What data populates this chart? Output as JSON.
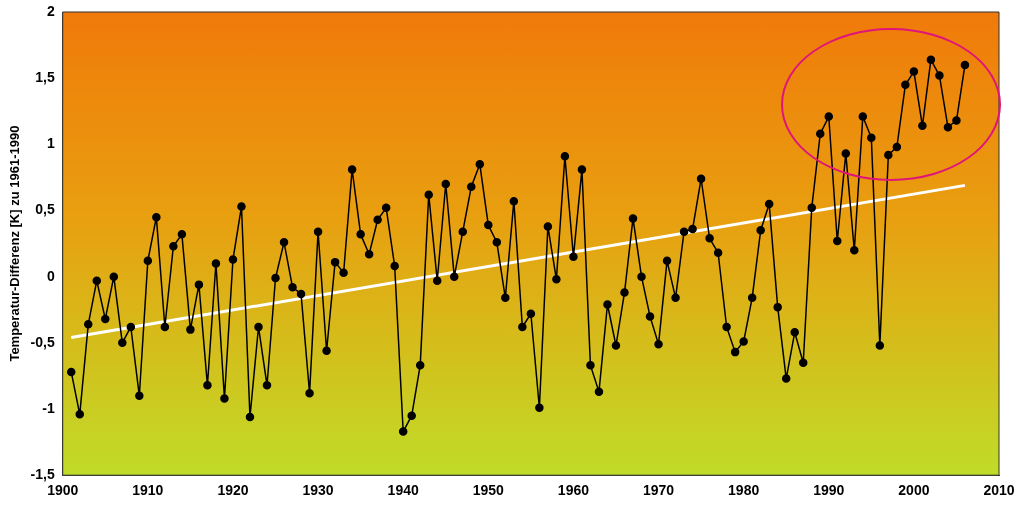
{
  "chart_data": {
    "type": "line",
    "ylabel": "Temperatur-Differenz [K] zu 1961-1990",
    "x": [
      1901,
      1902,
      1903,
      1904,
      1905,
      1906,
      1907,
      1908,
      1909,
      1910,
      1911,
      1912,
      1913,
      1914,
      1915,
      1916,
      1917,
      1918,
      1919,
      1920,
      1921,
      1922,
      1923,
      1924,
      1925,
      1926,
      1927,
      1928,
      1929,
      1930,
      1931,
      1932,
      1933,
      1934,
      1935,
      1936,
      1937,
      1938,
      1939,
      1940,
      1941,
      1942,
      1943,
      1944,
      1945,
      1946,
      1947,
      1948,
      1949,
      1950,
      1951,
      1952,
      1953,
      1954,
      1955,
      1956,
      1957,
      1958,
      1959,
      1960,
      1961,
      1962,
      1963,
      1964,
      1965,
      1966,
      1967,
      1968,
      1969,
      1970,
      1971,
      1972,
      1973,
      1974,
      1975,
      1976,
      1977,
      1978,
      1979,
      1980,
      1981,
      1982,
      1983,
      1984,
      1985,
      1986,
      1987,
      1988,
      1989,
      1990,
      1991,
      1992,
      1993,
      1994,
      1995,
      1996,
      1997,
      1998,
      1999,
      2000,
      2001,
      2002,
      2003,
      2004,
      2005,
      2006
    ],
    "series": [
      {
        "color": "#000000",
        "marker": "circle",
        "values": [
          -0.72,
          -1.04,
          -0.36,
          -0.03,
          -0.32,
          0.0,
          -0.5,
          -0.38,
          -0.9,
          0.12,
          0.45,
          -0.38,
          0.23,
          0.32,
          -0.4,
          -0.06,
          -0.82,
          0.1,
          -0.92,
          0.13,
          0.53,
          -1.06,
          -0.38,
          -0.82,
          -0.01,
          0.26,
          -0.08,
          -0.13,
          -0.88,
          0.34,
          -0.56,
          0.11,
          0.03,
          0.81,
          0.32,
          0.17,
          0.43,
          0.52,
          0.08,
          -1.17,
          -1.05,
          -0.67,
          0.62,
          -0.03,
          0.7,
          0.0,
          0.34,
          0.68,
          0.85,
          0.39,
          0.26,
          -0.16,
          0.57,
          -0.38,
          -0.28,
          -0.99,
          0.38,
          -0.02,
          0.91,
          0.15,
          0.81,
          -0.67,
          -0.87,
          -0.21,
          -0.52,
          -0.12,
          0.44,
          0.0,
          -0.3,
          -0.51,
          0.12,
          -0.16,
          0.34,
          0.36,
          0.74,
          0.29,
          0.18,
          -0.38,
          -0.57,
          -0.49,
          -0.16,
          0.35,
          0.55,
          -0.23,
          -0.77,
          -0.42,
          -0.65,
          0.52,
          1.08,
          1.21,
          0.27,
          0.93,
          0.2,
          1.21,
          1.05,
          -0.52,
          0.92,
          0.98,
          1.45,
          1.55,
          1.14,
          1.64,
          1.52,
          1.13,
          1.18,
          1.6
        ]
      },
      {
        "type": "line",
        "color": "#ffffff",
        "marker": "none",
        "x": [
          1901,
          2006
        ],
        "values": [
          -0.46,
          0.69
        ]
      }
    ],
    "xlim": [
      1900,
      2010
    ],
    "xticks": [
      1900,
      1910,
      1920,
      1930,
      1940,
      1950,
      1960,
      1970,
      1980,
      1990,
      2000,
      2010
    ],
    "ylim": [
      -1.5,
      2
    ],
    "yticks": [
      {
        "value": -1.5,
        "label": "-1,5"
      },
      -1,
      {
        "value": -0.5,
        "label": "-0,5"
      },
      0,
      {
        "value": 0.5,
        "label": "0,5"
      },
      1,
      {
        "value": 1.5,
        "label": "1,5"
      },
      2
    ],
    "grid": false,
    "legend": false
  }
}
